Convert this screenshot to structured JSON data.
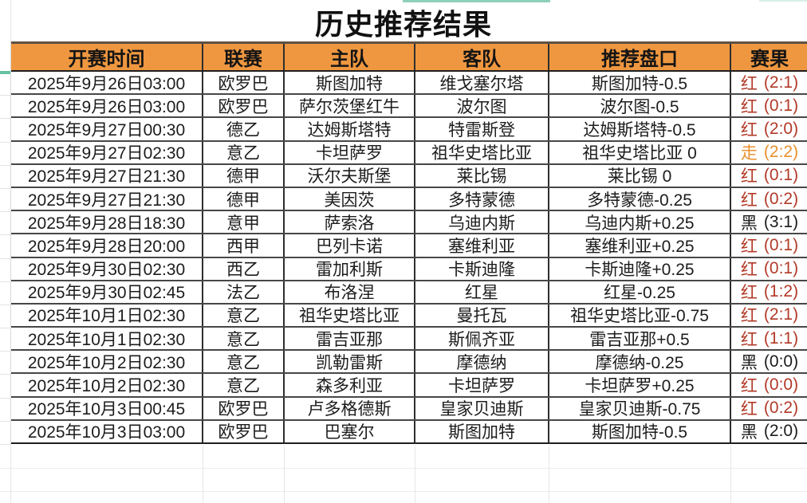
{
  "page": {
    "title": "历史推荐结果"
  },
  "colors": {
    "header_bg": "#EF9740",
    "header_top_border": "#5E5143",
    "result_red": "#B23A28",
    "result_push_orange": "#E8912D",
    "result_black": "#1C1C1C",
    "teal_accent": "#8FD0BC",
    "teal_accent_strong": "#63C3A4"
  },
  "table": {
    "columns": [
      "开赛时间",
      "联赛",
      "主队",
      "客队",
      "推荐盘口",
      "赛果"
    ],
    "rows": [
      {
        "time": "2025年9月26日03:00",
        "league": "欧罗巴",
        "home": "斯图加特",
        "away": "维戈塞尔塔",
        "handicap": "斯图加特-0.5",
        "result": "红",
        "score": "(2:1)",
        "result_type": "red"
      },
      {
        "time": "2025年9月26日03:00",
        "league": "欧罗巴",
        "home": "萨尔茨堡红牛",
        "away": "波尔图",
        "handicap": "波尔图-0.5",
        "result": "红",
        "score": "(0:1)",
        "result_type": "red"
      },
      {
        "time": "2025年9月27日00:30",
        "league": "德乙",
        "home": "达姆斯塔特",
        "away": "特雷斯登",
        "handicap": "达姆斯塔特-0.5",
        "result": "红",
        "score": "(2:0)",
        "result_type": "red"
      },
      {
        "time": "2025年9月27日02:30",
        "league": "意乙",
        "home": "卡坦萨罗",
        "away": "祖华史塔比亚",
        "handicap": "祖华史塔比亚 0",
        "result": "走",
        "score": "(2:2)",
        "result_type": "push"
      },
      {
        "time": "2025年9月27日21:30",
        "league": "德甲",
        "home": "沃尔夫斯堡",
        "away": "莱比锡",
        "handicap": "莱比锡 0",
        "result": "红",
        "score": "(0:1)",
        "result_type": "red"
      },
      {
        "time": "2025年9月27日21:30",
        "league": "德甲",
        "home": "美因茨",
        "away": "多特蒙德",
        "handicap": "多特蒙德-0.25",
        "result": "红",
        "score": "(0:2)",
        "result_type": "red"
      },
      {
        "time": "2025年9月28日18:30",
        "league": "意甲",
        "home": "萨索洛",
        "away": "乌迪内斯",
        "handicap": "乌迪内斯+0.25",
        "result": "黑",
        "score": "(3:1)",
        "result_type": "black"
      },
      {
        "time": "2025年9月28日20:00",
        "league": "西甲",
        "home": "巴列卡诺",
        "away": "塞维利亚",
        "handicap": "塞维利亚+0.25",
        "result": "红",
        "score": "(0:1)",
        "result_type": "red"
      },
      {
        "time": "2025年9月30日02:30",
        "league": "西乙",
        "home": "雷加利斯",
        "away": "卡斯迪隆",
        "handicap": "卡斯迪隆+0.25",
        "result": "红",
        "score": "(0:1)",
        "result_type": "red"
      },
      {
        "time": "2025年9月30日02:45",
        "league": "法乙",
        "home": "布洛涅",
        "away": "红星",
        "handicap": "红星-0.25",
        "result": "红",
        "score": "(1:2)",
        "result_type": "red"
      },
      {
        "time": "2025年10月1日02:30",
        "league": "意乙",
        "home": "祖华史塔比亚",
        "away": "曼托瓦",
        "handicap": "祖华史塔比亚-0.75",
        "result": "红",
        "score": "(2:1)",
        "result_type": "red"
      },
      {
        "time": "2025年10月1日02:30",
        "league": "意乙",
        "home": "雷吉亚那",
        "away": "斯佩齐亚",
        "handicap": "雷吉亚那+0.5",
        "result": "红",
        "score": "(1:1)",
        "result_type": "red"
      },
      {
        "time": "2025年10月2日02:30",
        "league": "意乙",
        "home": "凯勒雷斯",
        "away": "摩德纳",
        "handicap": "摩德纳-0.25",
        "result": "黑",
        "score": "(0:0)",
        "result_type": "black"
      },
      {
        "time": "2025年10月2日02:30",
        "league": "意乙",
        "home": "森多利亚",
        "away": "卡坦萨罗",
        "handicap": "卡坦萨罗+0.25",
        "result": "红",
        "score": "(0:0)",
        "result_type": "red"
      },
      {
        "time": "2025年10月3日00:45",
        "league": "欧罗巴",
        "home": "卢多格德斯",
        "away": "皇家贝迪斯",
        "handicap": "皇家贝迪斯-0.75",
        "result": "红",
        "score": "(0:2)",
        "result_type": "red"
      },
      {
        "time": "2025年10月3日03:00",
        "league": "欧罗巴",
        "home": "巴塞尔",
        "away": "斯图加特",
        "handicap": "斯图加特-0.5",
        "result": "黑",
        "score": "(2:0)",
        "result_type": "black"
      }
    ]
  }
}
